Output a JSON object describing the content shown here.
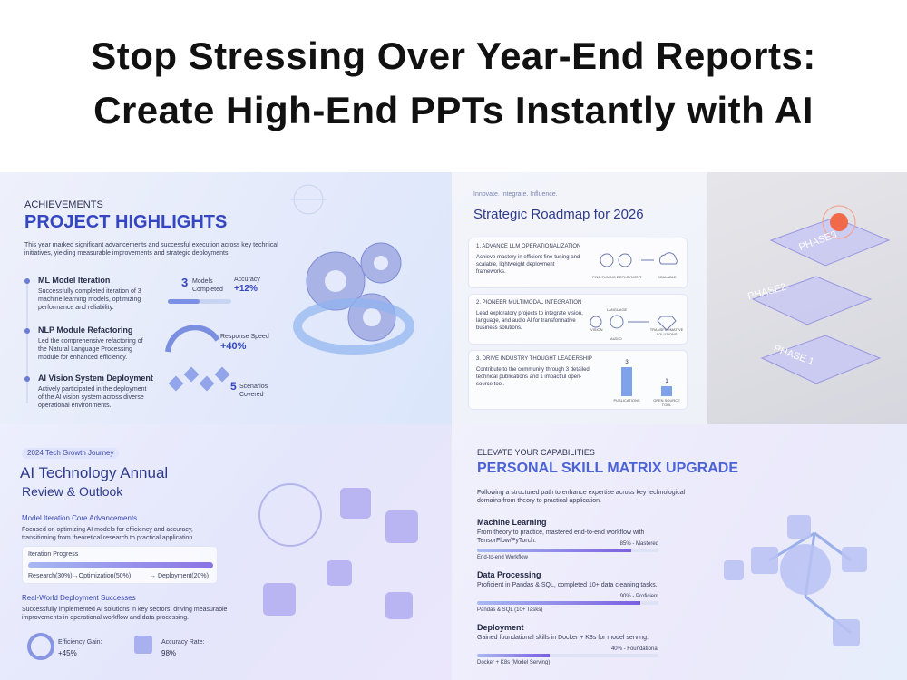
{
  "header": {
    "title_line1": "Stop Stressing Over Year-End Reports:",
    "title_line2": "Create High-End PPTs Instantly with AI"
  },
  "slide1": {
    "eyebrow": "ACHIEVEMENTS",
    "title": "PROJECT HIGHLIGHTS",
    "intro": "This year marked significant advancements and successful execution across key technical initiatives, yielding measurable improvements and strategic deployments.",
    "items": [
      {
        "title": "ML Model Iteration",
        "text": "Successfully completed iteration of 3 machine learning models, optimizing performance and reliability."
      },
      {
        "title": "NLP Module Refactoring",
        "text": "Led the comprehensive refactoring of the Natural Language Processing module for enhanced efficiency."
      },
      {
        "title": "AI Vision System Deployment",
        "text": "Actively participated in the deployment of the AI vision system across diverse operational environments."
      }
    ],
    "metrics": {
      "models_number": "3",
      "models_label": "Models Completed",
      "accuracy_label": "Accuracy",
      "accuracy_value": "+12%",
      "speed_label": "Response Speed",
      "speed_value": "+40%",
      "scenarios_number": "5",
      "scenarios_label": "Scenarios Covered"
    }
  },
  "slide2": {
    "kicker": "Innovate. Integrate. Influence.",
    "title": "Strategic Roadmap for 2026",
    "cards": [
      {
        "heading": "1. ADVANCE LLM OPERATIONALIZATION",
        "text": "Achieve mastery in efficient fine-tuning and scalable, lightweight deployment frameworks.",
        "icons": [
          "FINE-TUNING DEPLOYMENT",
          "SCALABLE"
        ]
      },
      {
        "heading": "2. PIONEER MULTIMODAL INTEGRATION",
        "text": "Lead exploratory projects to integrate vision, language, and audio AI for transformative business solutions.",
        "icons": [
          "VISION",
          "LANGUAGE",
          "AUDIO",
          "TRANSFORMATIVE SOLUTIONS"
        ]
      },
      {
        "heading": "3. DRIVE INDUSTRY THOUGHT LEADERSHIP",
        "text": "Contribute to the community through 3 detailed technical publications and 1 impactful open-source tool."
      }
    ],
    "bars": [
      {
        "name": "PUBLICATIONS",
        "value": 3
      },
      {
        "name": "OPEN SOURCE TOOL",
        "value": 1
      }
    ],
    "phases": [
      "PHASE3",
      "PHASE2",
      "PHASE 1"
    ]
  },
  "slide3": {
    "kicker": "2024 Tech Growth Journey",
    "title_line1": "AI Technology Annual",
    "title_line2": "Review & Outlook",
    "section1": "Model Iteration Core Advancements",
    "text1": "Focused on optimizing AI models for efficiency and accuracy, transitioning from theoretical research to practical application.",
    "progress_title": "Iteration Progress",
    "progress_left": "Research(30%)→Optimization(50%)",
    "progress_right": "→ Deployment(20%)",
    "section2": "Real-World Deployment Successes",
    "text2": "Successfully implemented AI solutions in key sectors, driving measurable improvements in operational workflow and data processing.",
    "efficiency_label": "Efficiency Gain:",
    "efficiency_value": "+45%",
    "accuracy_label": "Accuracy Rate:",
    "accuracy_value": "98%"
  },
  "slide4": {
    "eyebrow": "ELEVATE YOUR CAPABILITIES",
    "title": "PERSONAL SKILL MATRIX UPGRADE",
    "intro": "Following a structured path to enhance expertise across key technological domains from theory to practical application.",
    "skills": [
      {
        "name": "Machine Learning",
        "text": "From theory to practice, mastered end-to-end workflow with TensorFlow/PyTorch.",
        "progress": {
          "value": 85,
          "label": "85% - Mastered"
        },
        "caption": "End-to-end Workflow"
      },
      {
        "name": "Data Processing",
        "text": "Proficient in Pandas & SQL, completed 10+ data cleaning tasks.",
        "progress": {
          "value": 90,
          "label": "90% - Proficient"
        },
        "caption": "Pandas & SQL (10+ Tasks)"
      },
      {
        "name": "Deployment",
        "text": "Gained foundational skills in Docker + K8s for model serving.",
        "progress": {
          "value": 40,
          "label": "40% - Foundational"
        },
        "caption": "Docker + K8s (Model Serving)"
      }
    ]
  }
}
